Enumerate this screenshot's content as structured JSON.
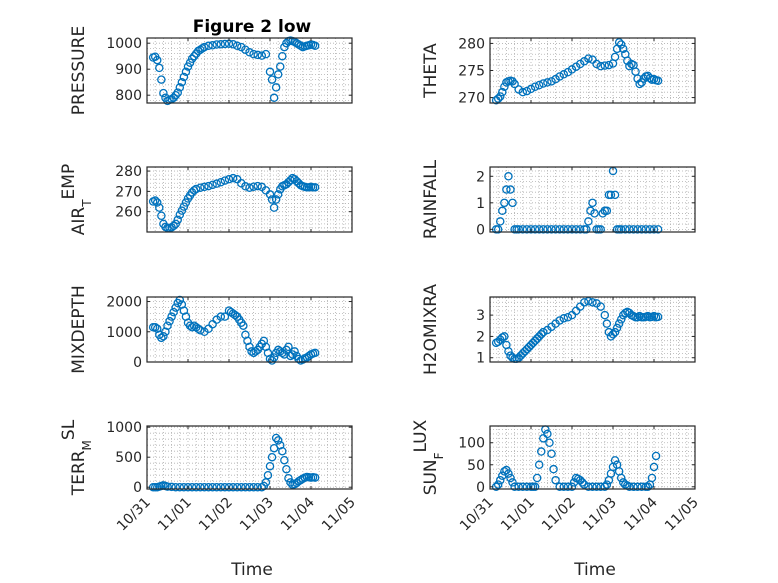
{
  "figure": {
    "title": "Figure 2 low",
    "xlabel": "Time"
  },
  "chart_data": [
    {
      "type": "scatter",
      "name": "PRESSURE",
      "ylabel": "PRESSURE",
      "ylabel_sub": "",
      "ylim": [
        770,
        1020
      ],
      "yticks": [
        800,
        900,
        1000
      ],
      "xticks": [
        "10/31",
        "11/01",
        "11/02",
        "11/03",
        "11/04",
        "11/05"
      ],
      "show_xticklabels": false,
      "grid": true,
      "color": "#0072BD",
      "x": [
        0.15,
        0.2,
        0.25,
        0.3,
        0.35,
        0.4,
        0.45,
        0.5,
        0.55,
        0.6,
        0.65,
        0.7,
        0.75,
        0.8,
        0.85,
        0.9,
        0.95,
        1.0,
        1.05,
        1.1,
        1.15,
        1.2,
        1.25,
        1.3,
        1.35,
        1.4,
        1.5,
        1.6,
        1.7,
        1.8,
        1.9,
        2.0,
        2.1,
        2.2,
        2.3,
        2.4,
        2.5,
        2.6,
        2.7,
        2.8,
        2.9,
        3.0,
        3.05,
        3.1,
        3.15,
        3.2,
        3.25,
        3.3,
        3.35,
        3.4,
        3.45,
        3.5,
        3.55,
        3.6,
        3.65,
        3.7,
        3.75,
        3.8,
        3.85,
        3.9,
        3.95,
        4.0,
        4.05,
        4.1
      ],
      "y": [
        945,
        948,
        935,
        905,
        860,
        808,
        790,
        778,
        782,
        785,
        790,
        800,
        810,
        830,
        850,
        870,
        890,
        910,
        925,
        940,
        950,
        960,
        970,
        975,
        980,
        985,
        990,
        992,
        995,
        996,
        997,
        998,
        996,
        990,
        985,
        975,
        965,
        958,
        955,
        952,
        958,
        890,
        860,
        790,
        830,
        880,
        910,
        950,
        985,
        1000,
        1008,
        1010,
        1008,
        1005,
        1000,
        995,
        990,
        985,
        988,
        990,
        992,
        995,
        993,
        990
      ]
    },
    {
      "type": "scatter",
      "name": "THETA",
      "ylabel": "THETA",
      "ylabel_sub": "",
      "ylim": [
        269,
        281
      ],
      "yticks": [
        270,
        275,
        280
      ],
      "xticks": [
        "10/31",
        "11/01",
        "11/02",
        "11/03",
        "11/04",
        "11/05"
      ],
      "show_xticklabels": false,
      "grid": true,
      "color": "#0072BD",
      "x": [
        0.15,
        0.2,
        0.25,
        0.3,
        0.35,
        0.4,
        0.45,
        0.5,
        0.55,
        0.6,
        0.7,
        0.8,
        0.9,
        1.0,
        1.1,
        1.2,
        1.3,
        1.4,
        1.5,
        1.6,
        1.7,
        1.8,
        1.9,
        2.0,
        2.1,
        2.2,
        2.3,
        2.4,
        2.5,
        2.6,
        2.7,
        2.8,
        2.9,
        3.0,
        3.05,
        3.1,
        3.15,
        3.2,
        3.25,
        3.3,
        3.35,
        3.4,
        3.45,
        3.5,
        3.55,
        3.6,
        3.65,
        3.7,
        3.75,
        3.8,
        3.85,
        3.9,
        3.95,
        4.0,
        4.05,
        4.1
      ],
      "y": [
        269.5,
        269.8,
        270.2,
        271.0,
        272.0,
        272.8,
        273.0,
        273.1,
        273.0,
        272.5,
        271.5,
        271.0,
        271.2,
        271.6,
        272.0,
        272.3,
        272.6,
        272.8,
        273.0,
        273.4,
        273.9,
        274.3,
        274.7,
        275.2,
        275.7,
        276.2,
        276.7,
        277.2,
        277.0,
        276.2,
        275.8,
        275.9,
        276.0,
        276.3,
        277.5,
        279.0,
        280.2,
        279.8,
        279.0,
        278.0,
        276.8,
        275.8,
        276.2,
        276.0,
        274.8,
        273.5,
        272.5,
        272.8,
        273.5,
        273.9,
        274.0,
        273.6,
        273.3,
        273.4,
        273.2,
        273.1
      ]
    },
    {
      "type": "scatter",
      "name": "AIR_TEMP",
      "ylabel": "AIR",
      "ylabel_sub": "T",
      "ylabel_suffix": "EMP",
      "ylim": [
        250,
        282
      ],
      "yticks": [
        260,
        270,
        280
      ],
      "xticks": [
        "10/31",
        "11/01",
        "11/02",
        "11/03",
        "11/04",
        "11/05"
      ],
      "show_xticklabels": false,
      "grid": true,
      "color": "#0072BD",
      "x": [
        0.15,
        0.2,
        0.25,
        0.3,
        0.35,
        0.4,
        0.45,
        0.5,
        0.55,
        0.6,
        0.65,
        0.7,
        0.75,
        0.8,
        0.85,
        0.9,
        0.95,
        1.0,
        1.05,
        1.1,
        1.15,
        1.2,
        1.3,
        1.4,
        1.5,
        1.6,
        1.7,
        1.8,
        1.9,
        2.0,
        2.1,
        2.2,
        2.3,
        2.4,
        2.5,
        2.6,
        2.7,
        2.8,
        2.9,
        3.0,
        3.05,
        3.1,
        3.15,
        3.2,
        3.25,
        3.3,
        3.35,
        3.4,
        3.45,
        3.5,
        3.55,
        3.6,
        3.65,
        3.7,
        3.75,
        3.8,
        3.85,
        3.9,
        3.95,
        4.0,
        4.05,
        4.1
      ],
      "y": [
        265,
        265.5,
        264.5,
        262,
        258,
        254,
        252.5,
        252,
        252,
        252.3,
        253,
        254,
        256,
        258.5,
        260.5,
        262.5,
        264.5,
        266.5,
        268,
        269.5,
        270.5,
        271.2,
        271.8,
        272.2,
        272.6,
        273.2,
        273.8,
        274.5,
        275.3,
        276,
        276.5,
        276,
        274,
        272.5,
        271.8,
        272.3,
        272.6,
        272.2,
        270.5,
        268.5,
        266,
        262,
        266,
        268.5,
        271,
        272.5,
        273,
        273.5,
        274.5,
        275.5,
        276.5,
        276,
        275,
        274,
        273,
        272.5,
        272.2,
        272,
        272,
        272.2,
        272,
        272
      ]
    },
    {
      "type": "scatter",
      "name": "RAINFALL",
      "ylabel": "RAINFALL",
      "ylabel_sub": "",
      "ylim": [
        -0.1,
        2.35
      ],
      "yticks": [
        0,
        1,
        2
      ],
      "xticks": [
        "10/31",
        "11/01",
        "11/02",
        "11/03",
        "11/04",
        "11/05"
      ],
      "show_xticklabels": false,
      "grid": true,
      "color": "#0072BD",
      "x": [
        0.15,
        0.2,
        0.25,
        0.3,
        0.35,
        0.4,
        0.45,
        0.5,
        0.55,
        0.6,
        0.65,
        0.7,
        0.8,
        0.9,
        1.0,
        1.1,
        1.2,
        1.3,
        1.4,
        1.5,
        1.6,
        1.7,
        1.8,
        1.9,
        2.0,
        2.1,
        2.2,
        2.3,
        2.35,
        2.4,
        2.45,
        2.5,
        2.55,
        2.6,
        2.65,
        2.7,
        2.75,
        2.8,
        2.85,
        2.9,
        2.95,
        3.0,
        3.05,
        3.1,
        3.15,
        3.2,
        3.3,
        3.4,
        3.5,
        3.6,
        3.7,
        3.8,
        3.9,
        4.0,
        4.1
      ],
      "y": [
        0,
        0,
        0.3,
        0.7,
        1.0,
        1.5,
        2.0,
        1.5,
        1.0,
        0,
        0,
        0,
        0,
        0,
        0,
        0,
        0,
        0,
        0,
        0,
        0,
        0,
        0,
        0,
        0,
        0,
        0,
        0,
        0,
        0.3,
        0.7,
        1.0,
        0.6,
        0,
        0,
        0,
        0.6,
        0.7,
        0.7,
        1.3,
        1.3,
        2.2,
        1.3,
        0,
        0,
        0,
        0,
        0,
        0,
        0,
        0,
        0,
        0,
        0,
        0
      ]
    },
    {
      "type": "scatter",
      "name": "MIXDEPTH",
      "ylabel": "MIXDEPTH",
      "ylabel_sub": "",
      "ylim": [
        0,
        2150
      ],
      "yticks": [
        0,
        1000,
        2000
      ],
      "xticks": [
        "10/31",
        "11/01",
        "11/02",
        "11/03",
        "11/04",
        "11/05"
      ],
      "show_xticklabels": false,
      "grid": true,
      "color": "#0072BD",
      "x": [
        0.15,
        0.2,
        0.25,
        0.3,
        0.35,
        0.4,
        0.45,
        0.5,
        0.55,
        0.6,
        0.65,
        0.7,
        0.75,
        0.8,
        0.85,
        0.9,
        0.95,
        1.0,
        1.05,
        1.1,
        1.15,
        1.2,
        1.25,
        1.3,
        1.4,
        1.5,
        1.6,
        1.7,
        1.8,
        1.9,
        2.0,
        2.05,
        2.1,
        2.15,
        2.2,
        2.25,
        2.3,
        2.35,
        2.4,
        2.45,
        2.5,
        2.55,
        2.6,
        2.65,
        2.7,
        2.75,
        2.8,
        2.85,
        2.9,
        2.95,
        3.0,
        3.05,
        3.1,
        3.15,
        3.2,
        3.25,
        3.3,
        3.35,
        3.4,
        3.45,
        3.5,
        3.55,
        3.6,
        3.65,
        3.7,
        3.75,
        3.8,
        3.85,
        3.9,
        3.95,
        4.0,
        4.05,
        4.1
      ],
      "y": [
        1150,
        1150,
        1100,
        900,
        800,
        850,
        1000,
        1200,
        1350,
        1500,
        1650,
        1800,
        1950,
        2050,
        1900,
        1700,
        1500,
        1300,
        1200,
        1150,
        1200,
        1150,
        1100,
        1050,
        1000,
        1100,
        1250,
        1400,
        1500,
        1500,
        1700,
        1650,
        1600,
        1550,
        1500,
        1400,
        1300,
        1200,
        900,
        700,
        500,
        350,
        300,
        350,
        400,
        500,
        600,
        700,
        500,
        300,
        100,
        50,
        150,
        300,
        400,
        350,
        300,
        250,
        400,
        500,
        200,
        250,
        350,
        200,
        100,
        50,
        80,
        120,
        150,
        200,
        250,
        280,
        300
      ]
    },
    {
      "type": "scatter",
      "name": "H2OMIXRA",
      "ylabel": "H2OMIXRA",
      "ylabel_sub": "",
      "ylim": [
        0.8,
        3.85
      ],
      "yticks": [
        1,
        2,
        3
      ],
      "xticks": [
        "10/31",
        "11/01",
        "11/02",
        "11/03",
        "11/04",
        "11/05"
      ],
      "show_xticklabels": false,
      "grid": true,
      "color": "#0072BD",
      "x": [
        0.15,
        0.2,
        0.25,
        0.3,
        0.35,
        0.4,
        0.45,
        0.5,
        0.55,
        0.6,
        0.65,
        0.7,
        0.75,
        0.8,
        0.85,
        0.9,
        0.95,
        1.0,
        1.05,
        1.1,
        1.15,
        1.2,
        1.25,
        1.3,
        1.4,
        1.5,
        1.6,
        1.7,
        1.8,
        1.9,
        2.0,
        2.1,
        2.2,
        2.3,
        2.4,
        2.5,
        2.6,
        2.7,
        2.8,
        2.85,
        2.9,
        2.95,
        3.0,
        3.05,
        3.1,
        3.15,
        3.2,
        3.25,
        3.3,
        3.35,
        3.4,
        3.45,
        3.5,
        3.55,
        3.6,
        3.65,
        3.7,
        3.75,
        3.8,
        3.85,
        3.9,
        3.95,
        4.0,
        4.05,
        4.1
      ],
      "y": [
        1.7,
        1.75,
        1.85,
        1.95,
        2.0,
        1.6,
        1.3,
        1.1,
        1.0,
        0.95,
        0.95,
        1.0,
        1.1,
        1.2,
        1.3,
        1.4,
        1.5,
        1.6,
        1.7,
        1.8,
        1.9,
        2.0,
        2.1,
        2.2,
        2.3,
        2.45,
        2.6,
        2.75,
        2.85,
        2.9,
        3.0,
        3.2,
        3.4,
        3.6,
        3.65,
        3.6,
        3.55,
        3.4,
        3.0,
        2.6,
        2.2,
        2.0,
        2.1,
        2.2,
        2.4,
        2.6,
        2.8,
        3.0,
        3.1,
        3.15,
        3.1,
        3.0,
        2.95,
        2.9,
        2.9,
        2.95,
        2.9,
        2.9,
        2.92,
        2.95,
        2.9,
        2.92,
        2.95,
        2.9,
        2.92
      ]
    },
    {
      "type": "scatter",
      "name": "TERR_MSL",
      "ylabel": "TERR",
      "ylabel_sub": "M",
      "ylabel_suffix": "SL",
      "ylim": [
        -30,
        1020
      ],
      "yticks": [
        0,
        500,
        1000
      ],
      "xticks": [
        "10/31",
        "11/01",
        "11/02",
        "11/03",
        "11/04",
        "11/05"
      ],
      "show_xticklabels": true,
      "grid": true,
      "color": "#0072BD",
      "x": [
        0.15,
        0.2,
        0.25,
        0.3,
        0.35,
        0.4,
        0.45,
        0.5,
        0.6,
        0.7,
        0.8,
        0.9,
        1.0,
        1.1,
        1.2,
        1.3,
        1.4,
        1.5,
        1.6,
        1.7,
        1.8,
        1.9,
        2.0,
        2.1,
        2.2,
        2.3,
        2.4,
        2.5,
        2.6,
        2.7,
        2.8,
        2.85,
        2.9,
        2.95,
        3.0,
        3.05,
        3.1,
        3.15,
        3.2,
        3.25,
        3.3,
        3.35,
        3.4,
        3.45,
        3.5,
        3.55,
        3.6,
        3.65,
        3.7,
        3.75,
        3.8,
        3.85,
        3.9,
        3.95,
        4.0,
        4.05,
        4.1
      ],
      "y": [
        0,
        0,
        0,
        10,
        20,
        30,
        20,
        10,
        5,
        0,
        0,
        0,
        0,
        0,
        0,
        0,
        0,
        0,
        0,
        0,
        0,
        0,
        0,
        0,
        0,
        0,
        0,
        0,
        0,
        0,
        0,
        20,
        80,
        200,
        350,
        500,
        650,
        820,
        780,
        700,
        600,
        450,
        300,
        150,
        80,
        40,
        50,
        70,
        100,
        120,
        140,
        160,
        170,
        165,
        160,
        165,
        160
      ]
    },
    {
      "type": "scatter",
      "name": "SUN_FLUX",
      "ylabel": "SUN",
      "ylabel_sub": "F",
      "ylabel_suffix": "LUX",
      "ylim": [
        -5,
        138
      ],
      "yticks": [
        0,
        50,
        100
      ],
      "xticks": [
        "10/31",
        "11/01",
        "11/02",
        "11/03",
        "11/04",
        "11/05"
      ],
      "show_xticklabels": true,
      "grid": true,
      "color": "#0072BD",
      "x": [
        0.15,
        0.2,
        0.25,
        0.3,
        0.35,
        0.4,
        0.45,
        0.5,
        0.55,
        0.6,
        0.7,
        0.8,
        0.9,
        1.0,
        1.05,
        1.1,
        1.15,
        1.2,
        1.25,
        1.3,
        1.35,
        1.4,
        1.45,
        1.5,
        1.55,
        1.6,
        1.7,
        1.8,
        1.9,
        2.0,
        2.05,
        2.1,
        2.15,
        2.2,
        2.25,
        2.3,
        2.4,
        2.5,
        2.6,
        2.7,
        2.8,
        2.85,
        2.9,
        2.95,
        3.0,
        3.05,
        3.1,
        3.15,
        3.2,
        3.25,
        3.3,
        3.35,
        3.4,
        3.5,
        3.6,
        3.7,
        3.8,
        3.85,
        3.9,
        3.95,
        4.0,
        4.05
      ],
      "y": [
        0,
        5,
        15,
        25,
        35,
        38,
        30,
        20,
        10,
        0,
        0,
        0,
        0,
        0,
        0,
        0,
        20,
        50,
        80,
        110,
        130,
        120,
        100,
        75,
        40,
        15,
        0,
        0,
        0,
        0,
        10,
        20,
        18,
        15,
        10,
        5,
        0,
        0,
        0,
        0,
        0,
        5,
        15,
        30,
        45,
        60,
        50,
        35,
        20,
        10,
        5,
        3,
        0,
        0,
        0,
        0,
        0,
        0,
        5,
        20,
        45,
        70
      ]
    }
  ]
}
